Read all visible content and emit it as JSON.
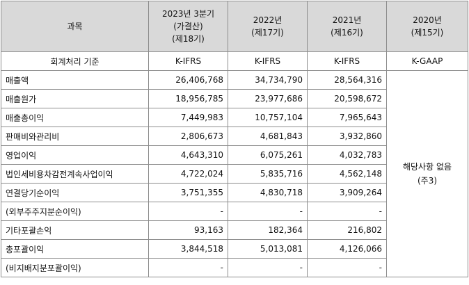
{
  "header": {
    "item_label": "과목",
    "col1": [
      "2023년 3분기",
      "(가결산)",
      "(제18기)"
    ],
    "col2": [
      "2022년",
      "(제17기)"
    ],
    "col3": [
      "2021년",
      "(제16기)"
    ],
    "col4": [
      "2020년",
      "(제15기)"
    ]
  },
  "standards": {
    "label": "회계처리 기준",
    "values": [
      "K-IFRS",
      "K-IFRS",
      "K-IFRS",
      "K-GAAP"
    ]
  },
  "rows": [
    {
      "label": "매출액",
      "v1": "26,406,768",
      "v2": "34,734,790",
      "v3": "28,564,316"
    },
    {
      "label": "매출원가",
      "v1": "18,956,785",
      "v2": "23,977,686",
      "v3": "20,598,672"
    },
    {
      "label": "매출총이익",
      "v1": "7,449,983",
      "v2": "10,757,104",
      "v3": "7,965,643"
    },
    {
      "label": "판매비와관리비",
      "v1": "2,806,673",
      "v2": "4,681,843",
      "v3": "3,932,860"
    },
    {
      "label": "영업이익",
      "v1": "4,643,310",
      "v2": "6,075,261",
      "v3": "4,032,783"
    },
    {
      "label": "법인세비용차감전계속사업이익",
      "v1": "4,722,024",
      "v2": "5,835,716",
      "v3": "4,562,148"
    },
    {
      "label": "연결당기순이익",
      "v1": "3,751,355",
      "v2": "4,830,718",
      "v3": "3,909,264"
    },
    {
      "label": "(외부주주지분순이익)",
      "v1": "-",
      "v2": "-",
      "v3": "-"
    },
    {
      "label": "기타포괄손익",
      "v1": "93,163",
      "v2": "182,364",
      "v3": "216,802"
    },
    {
      "label": "총포괄이익",
      "v1": "3,844,518",
      "v2": "5,013,081",
      "v3": "4,126,066"
    },
    {
      "label": "(비지배지분포괄이익)",
      "v1": "-",
      "v2": "-",
      "v3": "-"
    }
  ],
  "not_applicable": [
    "해당사항 없음",
    "(주3)"
  ]
}
